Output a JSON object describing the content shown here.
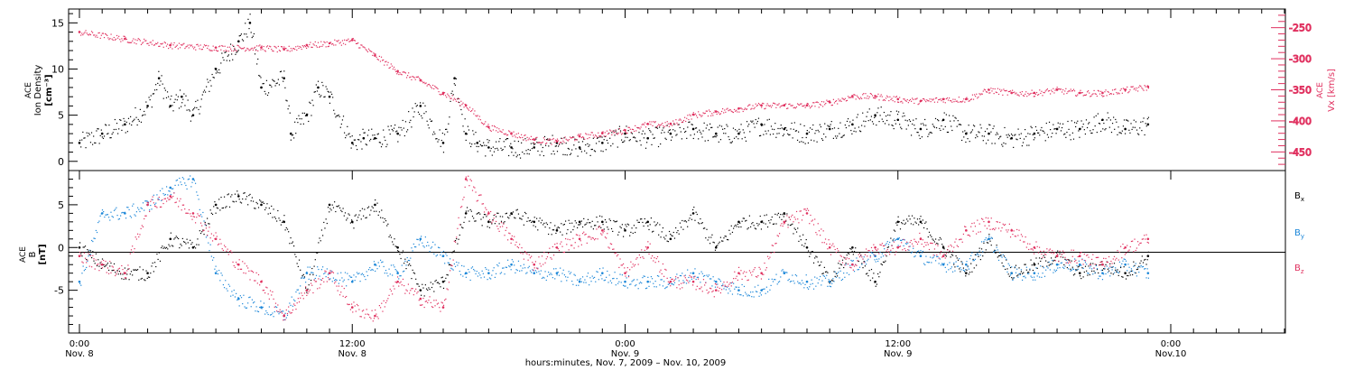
{
  "colors": {
    "black": "#000000",
    "pink": "#e0305f",
    "blue": "#1a86d8"
  },
  "chart_data": [
    {
      "type": "scatter",
      "panel": "top",
      "ylabel_lines": [
        "ACE",
        "Ion Density",
        "[cm⁻³]"
      ],
      "ylim": [
        -1,
        16.5
      ],
      "yticks": [
        "0",
        "5",
        "10",
        "15"
      ],
      "y2label_lines": [
        "ACE",
        "Vx [km/s]"
      ],
      "y2lim": [
        -480,
        -220
      ],
      "y2ticks": [
        "-250",
        "-300",
        "-350",
        "-400",
        "-450"
      ],
      "grid": false,
      "series": [
        {
          "name": "ACE Ion Density",
          "color": "#000000",
          "axis": "left",
          "x": [
            0.0,
            1.0,
            2.0,
            3.0,
            3.5,
            4.0,
            4.5,
            5.0,
            6.0,
            7.0,
            7.5,
            8.0,
            9.0,
            9.3,
            10.0,
            10.5,
            11.0,
            12.0,
            12.5,
            13.0,
            14.0,
            15.0,
            16.0,
            16.5,
            17.0,
            17.5,
            18.0,
            19.0,
            20.0,
            21.0,
            22.0,
            23.0,
            24.0,
            25.0,
            26.0,
            27.0,
            28.0,
            29.0,
            30.0,
            31.0,
            32.0,
            33.0,
            34.0,
            35.0,
            36.0,
            37.0,
            38.0,
            39.0,
            40.0,
            41.0,
            42.0,
            43.0,
            44.0,
            45.0,
            46.0,
            47.0
          ],
          "y": [
            2,
            3,
            4,
            6,
            9,
            6,
            7,
            5,
            10,
            13,
            15,
            8,
            9,
            3,
            5,
            8,
            7,
            2,
            2.5,
            2.5,
            3,
            6,
            2,
            9,
            3,
            2,
            1.5,
            1.5,
            1.5,
            2,
            1.5,
            2,
            3,
            2.5,
            3,
            3.5,
            3,
            3,
            4,
            3.5,
            3,
            3.5,
            4,
            5,
            4.5,
            3.5,
            4.5,
            3,
            3,
            2.5,
            3,
            3.5,
            3.5,
            4.5,
            3.5,
            4
          ]
        },
        {
          "name": "ACE Vx",
          "color": "#e0305f",
          "axis": "right",
          "x": [
            0,
            2,
            4,
            6,
            8,
            9,
            10,
            11,
            12,
            13,
            14,
            15,
            16,
            17,
            18,
            19,
            20,
            21,
            22,
            23,
            24,
            25,
            26,
            27,
            28,
            29,
            30,
            31,
            32,
            33,
            34,
            35,
            36,
            37,
            38,
            39,
            40,
            41,
            42,
            43,
            44,
            45,
            46,
            47
          ],
          "y": [
            -257,
            -268,
            -278,
            -282,
            -282,
            -285,
            -278,
            -275,
            -270,
            -295,
            -320,
            -335,
            -355,
            -375,
            -410,
            -420,
            -430,
            -433,
            -425,
            -420,
            -415,
            -405,
            -405,
            -390,
            -385,
            -380,
            -375,
            -375,
            -375,
            -370,
            -360,
            -360,
            -365,
            -368,
            -365,
            -365,
            -350,
            -355,
            -355,
            -350,
            -355,
            -355,
            -350,
            -345
          ]
        }
      ]
    },
    {
      "type": "scatter",
      "panel": "bottom",
      "ylabel_lines": [
        "ACE",
        "B",
        "[nT]"
      ],
      "ylim": [
        -10,
        9
      ],
      "yticks": [
        "5",
        "0",
        "-5"
      ],
      "grid": false,
      "zero_line": true,
      "series": [
        {
          "name": "Bx",
          "legend_main": "B",
          "legend_sub": "x",
          "color": "#000000",
          "x": [
            0,
            1,
            2,
            3,
            4,
            5,
            6,
            7,
            8,
            9,
            10,
            11,
            12,
            13,
            14,
            15,
            16,
            17,
            18,
            19,
            20,
            21,
            22,
            23,
            24,
            25,
            26,
            27,
            28,
            29,
            30,
            31,
            32,
            33,
            34,
            35,
            36,
            37,
            38,
            39,
            40,
            41,
            42,
            43,
            44,
            45,
            46,
            47
          ],
          "y": [
            0,
            -2,
            -3,
            -3,
            1,
            0,
            5,
            6,
            5,
            3,
            -5,
            5,
            3,
            5,
            0,
            -5,
            -4,
            4,
            3,
            4,
            3,
            2,
            3,
            3,
            2,
            3,
            1,
            4,
            0,
            3,
            3,
            4,
            0,
            -4,
            0,
            -4,
            3,
            3,
            0,
            -3,
            1,
            -3,
            -2,
            -1,
            -3,
            -2,
            -3,
            -1
          ]
        },
        {
          "name": "By",
          "legend_main": "B",
          "legend_sub": "y",
          "color": "#1a86d8",
          "x": [
            0,
            1,
            2,
            3,
            4,
            5,
            6,
            7,
            8,
            9,
            10,
            11,
            12,
            13,
            14,
            15,
            16,
            17,
            18,
            19,
            20,
            21,
            22,
            23,
            24,
            25,
            26,
            27,
            28,
            29,
            30,
            31,
            32,
            33,
            34,
            35,
            36,
            37,
            38,
            39,
            40,
            41,
            42,
            43,
            44,
            45,
            46,
            47
          ],
          "y": [
            -4,
            4,
            4,
            5,
            7,
            8,
            -3,
            -6,
            -7,
            -8,
            -3,
            -3,
            -4,
            -2,
            -3,
            1,
            -1,
            -3,
            -3,
            -2,
            -3,
            -3,
            -4,
            -3,
            -4,
            -4,
            -4,
            -3,
            -4,
            -5,
            -5,
            -3,
            -4,
            -4,
            -2,
            -1,
            1,
            -1,
            -2,
            -2,
            1,
            -3,
            -3,
            -2,
            -2,
            -3,
            -2,
            -3
          ]
        },
        {
          "name": "Bz",
          "legend_main": "B",
          "legend_sub": "z",
          "color": "#e0305f",
          "x": [
            0,
            1,
            2,
            3,
            4,
            5,
            6,
            7,
            8,
            9,
            10,
            11,
            12,
            13,
            14,
            15,
            16,
            17,
            18,
            19,
            20,
            21,
            22,
            23,
            24,
            25,
            26,
            27,
            28,
            29,
            30,
            31,
            32,
            33,
            34,
            35,
            36,
            37,
            38,
            39,
            40,
            41,
            42,
            43,
            44,
            45,
            46,
            47
          ],
          "y": [
            -1,
            -2,
            -3,
            5,
            6,
            4,
            1,
            -2,
            -4,
            -8,
            -5,
            -3,
            -7,
            -8,
            -4,
            -6,
            -7,
            8,
            4,
            1,
            -2,
            0,
            1,
            2,
            -3,
            0,
            -4,
            -4,
            -5,
            -3,
            -3,
            3,
            4,
            0,
            -2,
            0,
            0,
            1,
            -1,
            2,
            3,
            2,
            0,
            -1,
            -1,
            -2,
            0,
            1
          ]
        }
      ]
    }
  ],
  "x_axis": {
    "title": "hours:minutes, Nov.  7, 2009 – Nov. 10, 2009",
    "major_ticks": [
      {
        "hours": 0,
        "time": "0:00",
        "date": "Nov. 8"
      },
      {
        "hours": 12,
        "time": "12:00",
        "date": "Nov. 8"
      },
      {
        "hours": 24,
        "time": "0:00",
        "date": "Nov. 9"
      },
      {
        "hours": 36,
        "time": "12:00",
        "date": "Nov. 9"
      },
      {
        "hours": 48,
        "time": "0:00",
        "date": "Nov.10"
      }
    ]
  }
}
